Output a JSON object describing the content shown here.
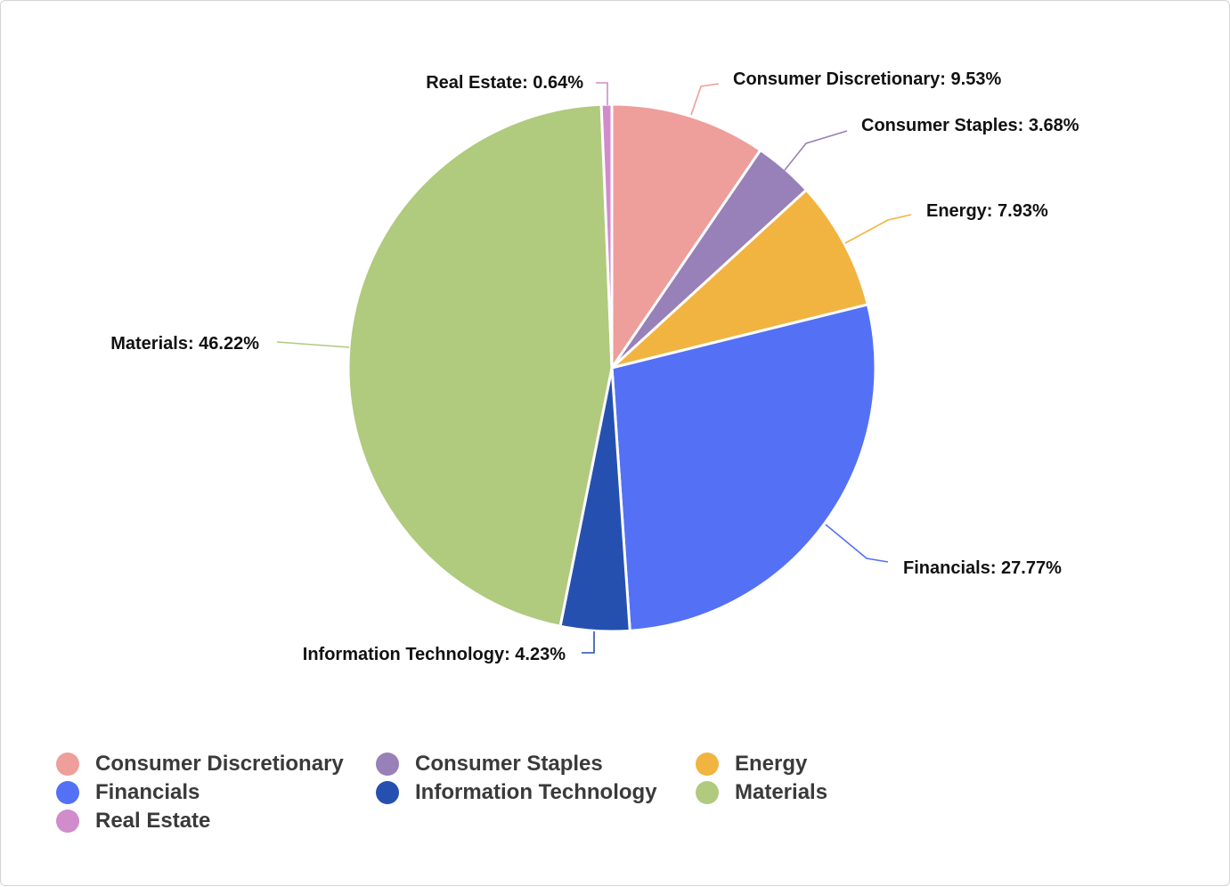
{
  "chart_data": {
    "type": "pie",
    "title": "",
    "slices": [
      {
        "label": "Consumer Discretionary",
        "value": 9.53,
        "display": "Consumer Discretionary: 9.53%",
        "color": "#EE9E9B"
      },
      {
        "label": "Consumer Staples",
        "value": 3.68,
        "display": "Consumer Staples: 3.68%",
        "color": "#9880B8"
      },
      {
        "label": "Energy",
        "value": 7.93,
        "display": "Energy: 7.93%",
        "color": "#F2B440"
      },
      {
        "label": "Financials",
        "value": 27.77,
        "display": "Financials: 27.77%",
        "color": "#5470F5"
      },
      {
        "label": "Information Technology",
        "value": 4.23,
        "display": "Information Technology: 4.23%",
        "color": "#2650B0"
      },
      {
        "label": "Materials",
        "value": 46.22,
        "display": "Materials: 46.22%",
        "color": "#B0CA7E"
      },
      {
        "label": "Real Estate",
        "value": 0.64,
        "display": "Real Estate: 0.64%",
        "color": "#D08CCB"
      }
    ],
    "legend_position": "bottom-left"
  },
  "legend": {
    "items": [
      {
        "label": "Consumer Discretionary",
        "color": "#EE9E9B"
      },
      {
        "label": "Consumer Staples",
        "color": "#9880B8"
      },
      {
        "label": "Energy",
        "color": "#F2B440"
      },
      {
        "label": "Financials",
        "color": "#5470F5"
      },
      {
        "label": "Information Technology",
        "color": "#2650B0"
      },
      {
        "label": "Materials",
        "color": "#B0CA7E"
      },
      {
        "label": "Real Estate",
        "color": "#D08CCB"
      }
    ]
  }
}
